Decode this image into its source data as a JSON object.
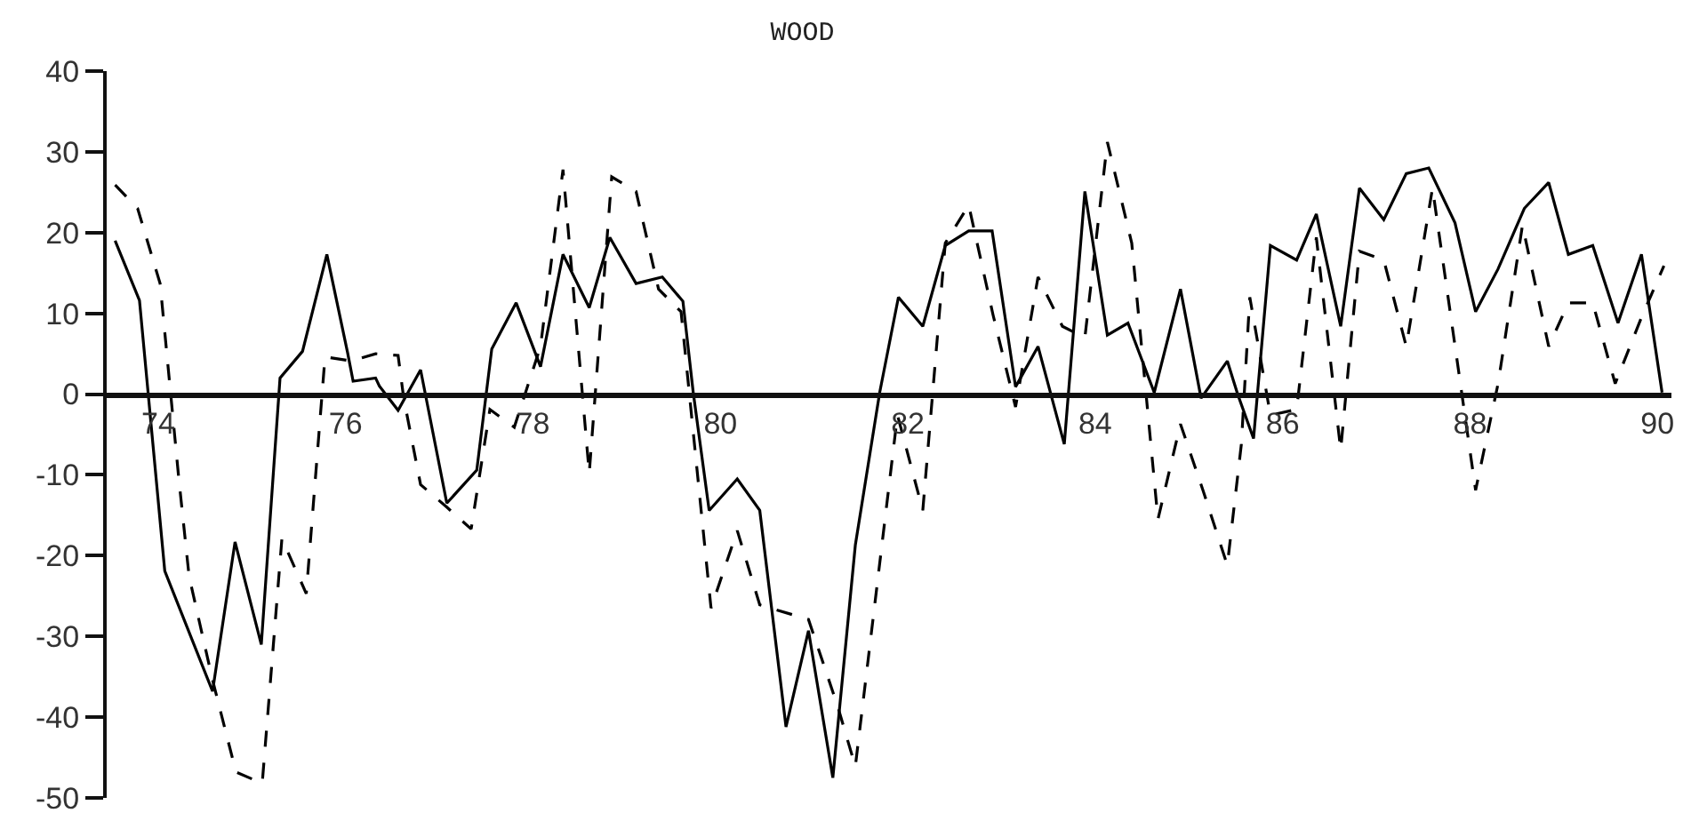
{
  "chart_data": {
    "type": "line",
    "title": "WOOD",
    "xlim": [
      73.45,
      90.15
    ],
    "xticks": [
      74,
      76,
      78,
      80,
      82,
      84,
      86,
      88,
      90
    ],
    "ylim": [
      -50,
      40
    ],
    "yticks": [
      -50,
      -40,
      -30,
      -20,
      -10,
      0,
      10,
      20,
      30,
      40
    ],
    "marker": "none",
    "series": [
      {
        "color": "#000000",
        "line_style": "solid",
        "x": [
          73.54,
          73.8,
          74.07,
          74.58,
          74.82,
          75.1,
          75.3,
          75.54,
          75.8,
          76.02,
          76.08,
          76.32,
          76.36,
          76.56,
          76.8,
          77.08,
          77.4,
          77.56,
          77.82,
          78.08,
          78.32,
          78.6,
          78.82,
          79.1,
          79.38,
          79.6,
          79.71,
          79.88,
          80.18,
          80.42,
          80.7,
          80.94,
          81.2,
          81.44,
          81.7,
          81.9,
          82.16,
          82.4,
          82.65,
          82.9,
          83.15,
          83.39,
          83.67,
          83.89,
          84.13,
          84.35,
          84.63,
          84.91,
          85.13,
          85.41,
          85.52,
          85.69,
          85.87,
          86.15,
          86.36,
          86.62,
          86.82,
          87.08,
          87.32,
          87.56,
          87.84,
          88.06,
          88.3,
          88.58,
          88.84,
          89.05,
          89.31,
          89.58,
          89.83,
          90.05
        ],
        "values": [
          19,
          11.6,
          -21.9,
          -36.8,
          -18.3,
          -31,
          2,
          5.3,
          17.3,
          5.2,
          1.6,
          2,
          1,
          -2,
          3,
          -13.5,
          -9.4,
          5.6,
          11.3,
          3.4,
          17.3,
          10.7,
          19.4,
          13.7,
          14.5,
          11.5,
          0.2,
          -14.4,
          -10.5,
          -14.4,
          -41.2,
          -29.3,
          -47.5,
          -18.7,
          0.2,
          12,
          8.4,
          18.4,
          20.2,
          20.2,
          0.9,
          5.9,
          -6.2,
          25.1,
          7.3,
          8.8,
          0.2,
          13,
          -0.5,
          4.1,
          0,
          -5.5,
          18.4,
          16.6,
          22.3,
          8.4,
          25.5,
          21.6,
          27.3,
          28,
          21.2,
          10.2,
          15.5,
          23,
          26.2,
          17.3,
          18.4,
          8.8,
          17.3,
          0.2
        ]
      },
      {
        "color": "#000000",
        "line_style": "dashed",
        "x": [
          73.54,
          73.78,
          74.02,
          74.22,
          74.33,
          74.58,
          74.83,
          75.11,
          75.32,
          75.58,
          75.78,
          76.06,
          76.32,
          76.56,
          76.62,
          76.8,
          77.08,
          77.34,
          77.54,
          77.8,
          78.08,
          78.32,
          78.6,
          78.84,
          79.1,
          79.34,
          79.58,
          79.9,
          80.18,
          80.42,
          80.94,
          81.25,
          81.44,
          81.89,
          82.16,
          82.4,
          82.65,
          82.91,
          83.15,
          83.39,
          83.65,
          83.89,
          84.13,
          84.39,
          84.67,
          84.91,
          85.15,
          85.41,
          85.56,
          85.65,
          85.87,
          86.15,
          86.36,
          86.62,
          86.82,
          87.08,
          87.32,
          87.6,
          88.06,
          88.3,
          88.56,
          88.84,
          89.05,
          89.31,
          89.55,
          89.83,
          90.07
        ],
        "values": [
          25.9,
          23,
          13.7,
          -10.5,
          -22.6,
          -35.4,
          -46.8,
          -48.2,
          -17.9,
          -24.7,
          4.6,
          4.1,
          5,
          4.8,
          -0.5,
          -11.2,
          -14,
          -16.7,
          -1.9,
          -4.1,
          5.9,
          27.8,
          -9.8,
          26.9,
          25.1,
          13,
          10.2,
          -26.5,
          -16.9,
          -26.1,
          -27.9,
          -38.6,
          -46.1,
          -2.6,
          -14.4,
          18.7,
          23.4,
          9.8,
          -1.6,
          14.5,
          8.4,
          7,
          31.2,
          18.7,
          -15.5,
          -3.7,
          -11.9,
          -21.2,
          -6.2,
          12,
          -2.6,
          -1.9,
          19.4,
          -6.9,
          17.7,
          16.6,
          5.9,
          25.5,
          -11.9,
          1.3,
          20.9,
          5.9,
          11.3,
          11.3,
          1.3,
          9.5,
          15.9
        ]
      }
    ]
  }
}
